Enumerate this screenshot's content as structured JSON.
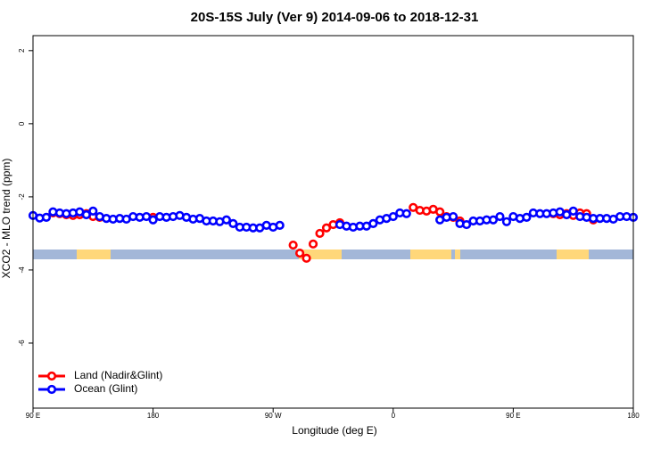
{
  "chart_data": {
    "type": "scatter",
    "title": "20S-15S July (Ver 9)   2014-09-06 to 2018-12-31",
    "xlabel": "Longitude (deg E)",
    "ylabel": "XCO2 - MLO trend (ppm)",
    "xlim": [
      90,
      540
    ],
    "ylim": [
      -7.78,
      2.41
    ],
    "xticks": [
      {
        "value": 90,
        "label": "90 E"
      },
      {
        "value": 180,
        "label": "180"
      },
      {
        "value": 270,
        "label": "90 W"
      },
      {
        "value": 360,
        "label": "0"
      },
      {
        "value": 450,
        "label": "90 E"
      },
      {
        "value": 540,
        "label": "180"
      }
    ],
    "yticks": [
      -6,
      -4,
      -2,
      0,
      2
    ],
    "x": [
      90,
      95,
      100,
      105,
      110,
      115,
      120,
      125,
      130,
      135,
      140,
      145,
      150,
      155,
      160,
      165,
      170,
      175,
      180,
      185,
      190,
      195,
      200,
      205,
      210,
      215,
      220,
      225,
      230,
      235,
      240,
      245,
      250,
      255,
      260,
      265,
      270,
      275,
      280,
      285,
      290,
      295,
      300,
      305,
      310,
      315,
      320,
      325,
      330,
      335,
      340,
      345,
      350,
      355,
      360,
      365,
      370,
      375,
      380,
      385,
      390,
      395,
      400,
      405,
      410,
      415,
      420,
      425,
      430,
      435,
      440,
      445,
      450,
      455,
      460,
      465,
      470,
      475,
      480,
      485,
      490,
      495,
      500,
      505,
      510,
      515,
      520,
      525,
      530,
      535,
      540
    ],
    "series": [
      {
        "name": "Land (Nadir&Glint)",
        "color": "#ff0000",
        "values": [
          null,
          null,
          null,
          -2.44,
          -2.46,
          -2.49,
          -2.51,
          -2.49,
          -2.46,
          -2.54,
          -2.56,
          null,
          null,
          null,
          null,
          null,
          null,
          null,
          -2.56,
          null,
          null,
          null,
          null,
          null,
          null,
          null,
          null,
          null,
          null,
          null,
          null,
          null,
          null,
          null,
          null,
          null,
          null,
          null,
          null,
          -3.32,
          -3.54,
          -3.68,
          -3.29,
          -3.0,
          -2.85,
          -2.76,
          -2.71,
          null,
          null,
          null,
          null,
          null,
          null,
          null,
          null,
          null,
          null,
          -2.29,
          -2.37,
          -2.39,
          -2.34,
          -2.41,
          -2.54,
          -2.56,
          -2.66,
          null,
          null,
          null,
          null,
          null,
          null,
          null,
          null,
          null,
          null,
          null,
          null,
          null,
          -2.46,
          -2.49,
          -2.46,
          -2.51,
          -2.44,
          -2.46,
          -2.63,
          null,
          null,
          null,
          null,
          null,
          null
        ]
      },
      {
        "name": "Ocean (Glint)",
        "color": "#0000ff",
        "values": [
          -2.51,
          -2.58,
          -2.56,
          -2.41,
          -2.44,
          -2.46,
          -2.44,
          -2.41,
          -2.49,
          -2.39,
          -2.54,
          -2.59,
          -2.61,
          -2.59,
          -2.61,
          -2.54,
          -2.56,
          -2.54,
          -2.63,
          -2.54,
          -2.56,
          -2.54,
          -2.51,
          -2.56,
          -2.61,
          -2.59,
          -2.66,
          -2.66,
          -2.68,
          -2.63,
          -2.73,
          -2.83,
          -2.83,
          -2.85,
          -2.85,
          -2.78,
          -2.83,
          -2.78,
          null,
          null,
          null,
          null,
          null,
          null,
          null,
          null,
          -2.76,
          -2.8,
          -2.83,
          -2.8,
          -2.8,
          -2.73,
          -2.63,
          -2.59,
          -2.54,
          -2.44,
          -2.46,
          null,
          null,
          null,
          null,
          -2.63,
          -2.56,
          -2.54,
          -2.73,
          -2.76,
          -2.66,
          -2.66,
          -2.63,
          -2.63,
          -2.54,
          -2.68,
          -2.54,
          -2.59,
          -2.56,
          -2.44,
          -2.46,
          -2.46,
          -2.44,
          -2.41,
          -2.49,
          -2.39,
          -2.54,
          -2.56,
          -2.59,
          -2.59,
          -2.59,
          -2.61,
          -2.54,
          -2.54,
          -2.56
        ]
      }
    ],
    "legend": "bottom-left"
  }
}
